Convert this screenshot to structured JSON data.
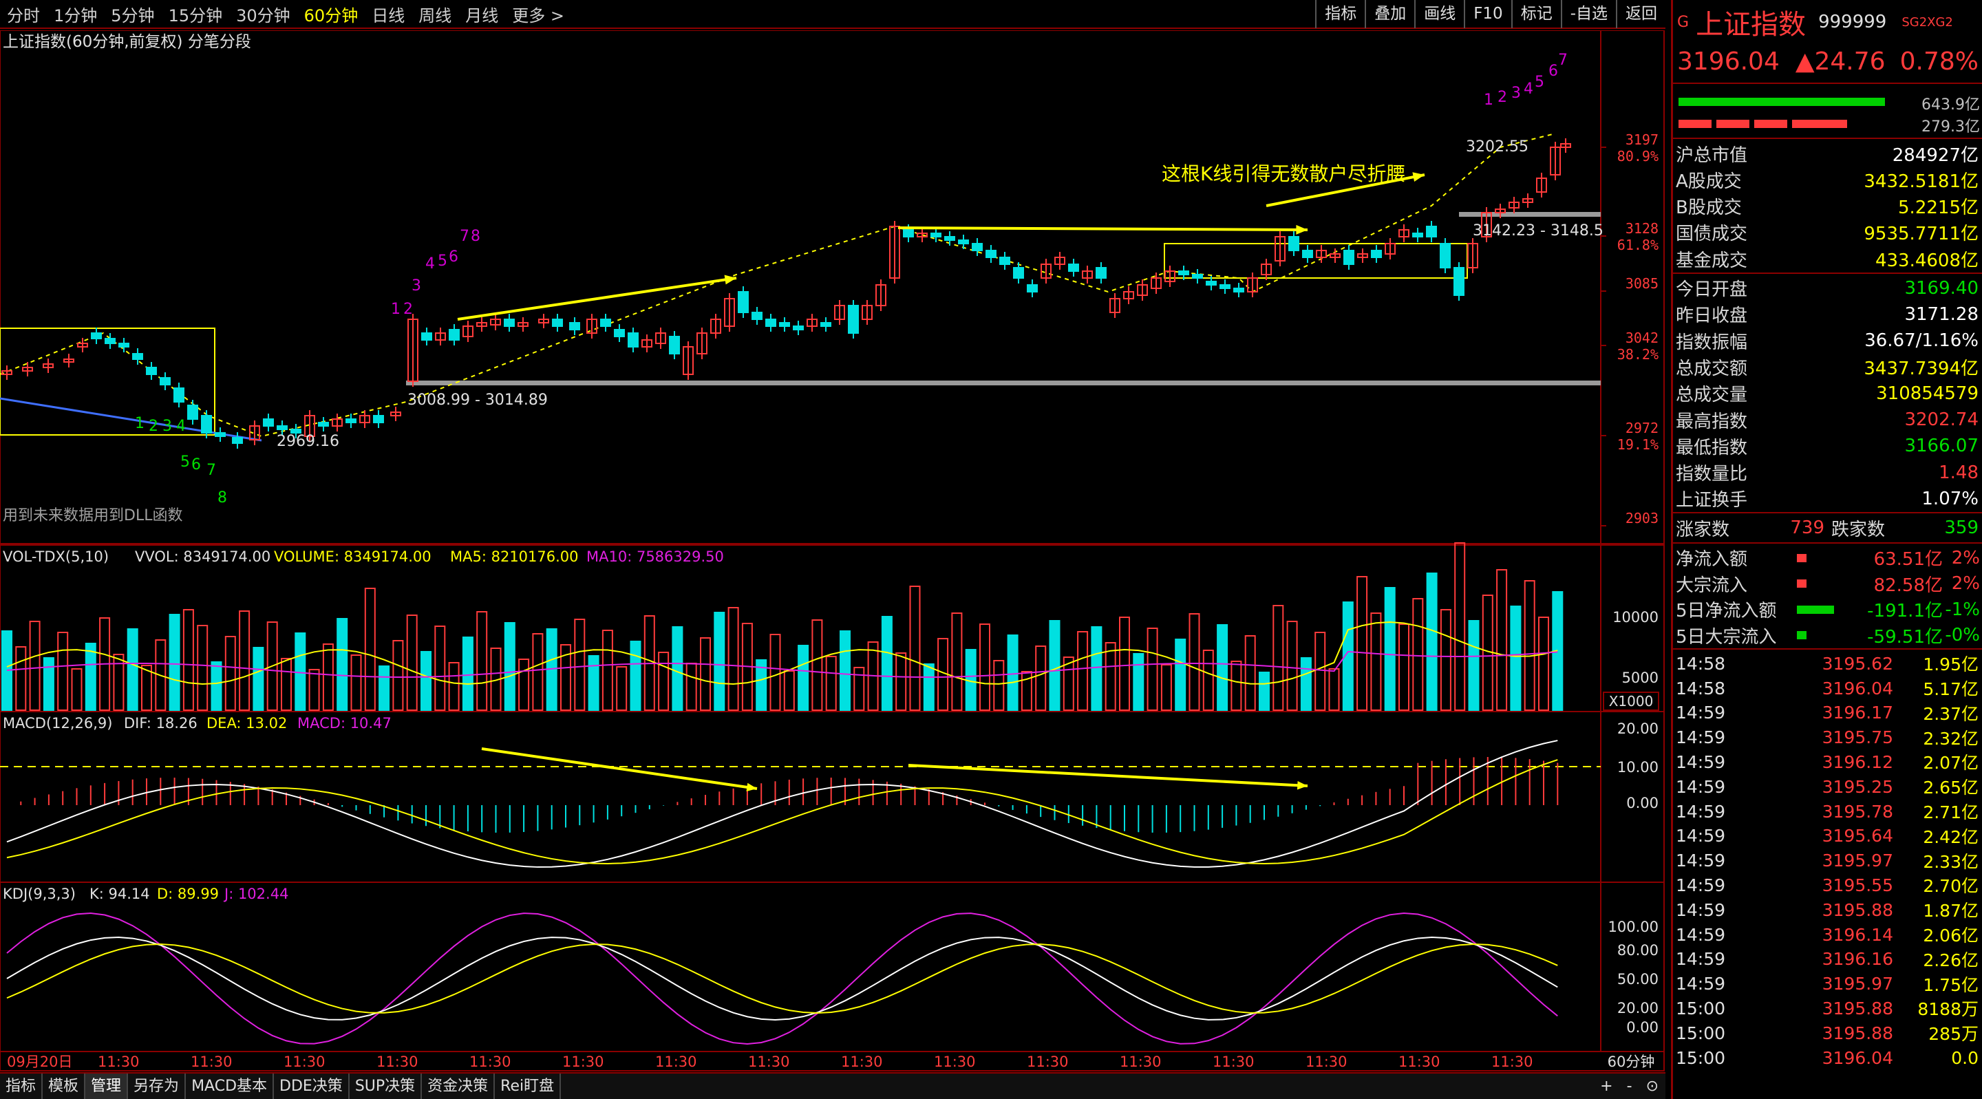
{
  "toolbar": {
    "periods": [
      "分时",
      "1分钟",
      "5分钟",
      "15分钟",
      "30分钟",
      "60分钟",
      "日线",
      "周线",
      "月线",
      "更多 >"
    ],
    "active_index": 5,
    "tools": [
      "指标",
      "叠加",
      "画线",
      "F10",
      "标记",
      "-自选",
      "返回"
    ]
  },
  "chart": {
    "title": "上证指数(60分钟,前复权) 分笔分段",
    "note": "用到未来数据用到DLL函数",
    "annotation": "这根K线引得无数散户尽折腰",
    "price_labels": {
      "high": "3202.55",
      "rect_right": "3142.23 - 3148.5",
      "mid_line": "3008.99 - 3014.89",
      "low": "2969.16"
    },
    "price_axis": [
      {
        "v": "3197",
        "pct": "80.9%"
      },
      {
        "v": "3128",
        "pct": "61.8%"
      },
      {
        "v": "3085",
        "pct": ""
      },
      {
        "v": "3042",
        "pct": "38.2%"
      },
      {
        "v": "2972",
        "pct": "19.1%"
      },
      {
        "v": "2903",
        "pct": ""
      }
    ],
    "wave_counts": {
      "a": [
        "1",
        "2",
        "3",
        "4",
        "5",
        "6",
        "7",
        "8"
      ],
      "b": [
        "1",
        "2",
        "3",
        "4",
        "5",
        "6",
        "7",
        "8"
      ],
      "c": [
        "1",
        "2",
        "3",
        "4",
        "5",
        "6",
        "7"
      ]
    }
  },
  "vol": {
    "name": "VOL-TDX(5,10)",
    "vvol": "VVOL: 8349174.00",
    "volume": "VOLUME: 8349174.00",
    "ma5": "MA5: 8210176.00",
    "ma10": "MA10: 7586329.50",
    "axis": [
      "10000",
      "5000"
    ],
    "unit": "X1000"
  },
  "macd": {
    "name": "MACD(12,26,9)",
    "dif": "DIF: 18.26",
    "dea": "DEA: 13.02",
    "macd": "MACD: 10.47",
    "axis": [
      "20.00",
      "10.00",
      "0.00"
    ]
  },
  "kdj": {
    "name": "KDJ(9,3,3)",
    "k": "K: 94.14",
    "d": "D: 89.99",
    "j": "J: 102.44",
    "axis": [
      "100.00",
      "80.00",
      "50.00",
      "20.00",
      "0.00"
    ]
  },
  "time_axis": {
    "first": "09月20日",
    "labels": [
      "11:30",
      "11:30",
      "11:30",
      "11:30",
      "11:30",
      "11:30",
      "11:30",
      "11:30",
      "11:30",
      "11:30",
      "11:30",
      "11:30",
      "11:30",
      "11:30",
      "11:30",
      "11:30"
    ],
    "period": "60分钟"
  },
  "bottom_tabs": {
    "tabs": [
      "指标",
      "模板",
      "管理",
      "另存为",
      "MACD基本",
      "DDE决策",
      "SUP决策",
      "资金决策",
      "Rei盯盘"
    ],
    "active_index": 2,
    "controls": [
      "+",
      "-",
      "⊙"
    ]
  },
  "quote": {
    "prefix": "G",
    "name": "上证指数",
    "code": "999999",
    "tag": "SG2XG2",
    "price": "3196.04",
    "change": "▲24.76",
    "pct": "0.78%",
    "bar1": "643.9亿",
    "bar2": "279.3亿",
    "rows": [
      {
        "l": "沪总市值",
        "v": "284927亿",
        "c": "wht"
      },
      {
        "l": "A股成交",
        "v": "3432.5181亿",
        "c": "yel"
      },
      {
        "l": "B股成交",
        "v": "5.2215亿",
        "c": "yel"
      },
      {
        "l": "国债成交",
        "v": "9535.7711亿",
        "c": "yel"
      },
      {
        "l": "基金成交",
        "v": "433.4608亿",
        "c": "yel"
      },
      {
        "l": "今日开盘",
        "v": "3169.40",
        "c": "down"
      },
      {
        "l": "昨日收盘",
        "v": "3171.28",
        "c": "wht"
      },
      {
        "l": "指数振幅",
        "v": "36.67/1.16%",
        "c": "wht"
      },
      {
        "l": "总成交额",
        "v": "3437.7394亿",
        "c": "yel"
      },
      {
        "l": "总成交量",
        "v": "310854579",
        "c": "yel"
      },
      {
        "l": "最高指数",
        "v": "3202.74",
        "c": "up"
      },
      {
        "l": "最低指数",
        "v": "3166.07",
        "c": "down"
      },
      {
        "l": "指数量比",
        "v": "1.48",
        "c": "up"
      },
      {
        "l": "上证换手",
        "v": "1.07%",
        "c": "wht"
      }
    ],
    "rise_label": "涨家数",
    "rise": "739",
    "fall_label": "跌家数",
    "fall": "359",
    "flows": [
      {
        "l": "净流入额",
        "v": "63.51亿",
        "p": "2%",
        "c": "up"
      },
      {
        "l": "大宗流入",
        "v": "82.58亿",
        "p": "2%",
        "c": "up"
      },
      {
        "l": "5日净流入额",
        "v": "-191.1亿",
        "p": "-1%",
        "c": "down"
      },
      {
        "l": "5日大宗流入",
        "v": "-59.51亿",
        "p": "-0%",
        "c": "down"
      }
    ],
    "ticks": [
      {
        "t": "14:58",
        "p": "3195.62",
        "a": "1.95亿"
      },
      {
        "t": "14:58",
        "p": "3196.04",
        "a": "5.17亿"
      },
      {
        "t": "14:59",
        "p": "3196.17",
        "a": "2.37亿"
      },
      {
        "t": "14:59",
        "p": "3195.75",
        "a": "2.32亿"
      },
      {
        "t": "14:59",
        "p": "3196.12",
        "a": "2.07亿"
      },
      {
        "t": "14:59",
        "p": "3195.25",
        "a": "2.65亿"
      },
      {
        "t": "14:59",
        "p": "3195.78",
        "a": "2.71亿"
      },
      {
        "t": "14:59",
        "p": "3195.64",
        "a": "2.42亿"
      },
      {
        "t": "14:59",
        "p": "3195.97",
        "a": "2.33亿"
      },
      {
        "t": "14:59",
        "p": "3195.55",
        "a": "2.70亿"
      },
      {
        "t": "14:59",
        "p": "3195.88",
        "a": "1.87亿"
      },
      {
        "t": "14:59",
        "p": "3196.14",
        "a": "2.06亿"
      },
      {
        "t": "14:59",
        "p": "3196.16",
        "a": "2.26亿"
      },
      {
        "t": "14:59",
        "p": "3195.97",
        "a": "1.75亿"
      },
      {
        "t": "15:00",
        "p": "3195.88",
        "a": "8188万"
      },
      {
        "t": "15:00",
        "p": "3195.88",
        "a": "285万"
      },
      {
        "t": "15:00",
        "p": "3196.04",
        "a": "0.0"
      }
    ]
  },
  "colors": {
    "up": "#ff3b3b",
    "down": "#00e0e0",
    "frame": "#8b0000",
    "accent": "#ffff00"
  }
}
